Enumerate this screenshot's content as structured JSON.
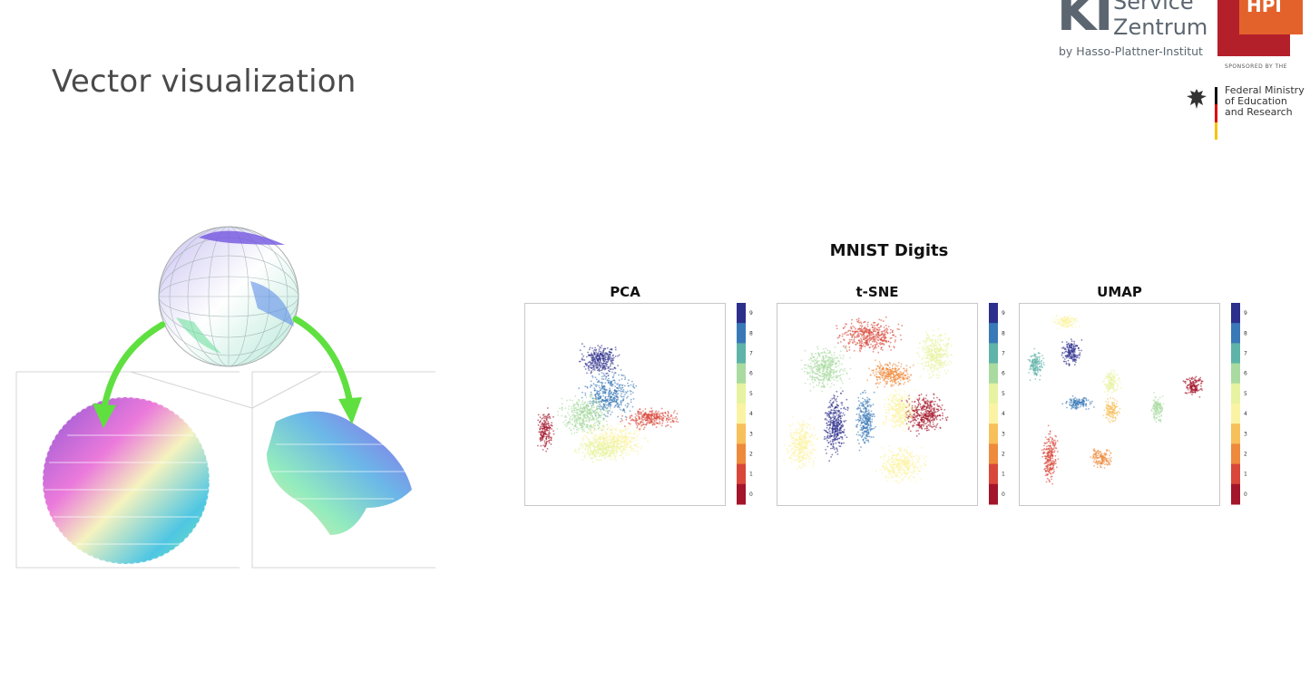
{
  "slide": {
    "title": "Vector visualization"
  },
  "logo": {
    "ki": "KI",
    "service": "Service",
    "zentrum": "Zentrum",
    "byline": "by Hasso-Plattner-Institut",
    "hpi": "HPI",
    "sponsored": "SPONSORED BY THE",
    "ministry_line1": "Federal Ministry",
    "ministry_line2": "of Education",
    "ministry_line3": "and Research"
  },
  "colors": {
    "title_text": "#4a4a4a",
    "hpi_red": "#b3202a",
    "hpi_orange": "#e3622b",
    "arrow_green": "#5fe040"
  },
  "icons": [
    "eagle-icon",
    "flag-stripe-icon",
    "sphere-icon",
    "arrow-icon"
  ],
  "chart_data": {
    "type": "scatter",
    "title": "MNIST Digits",
    "panels": [
      {
        "name": "PCA",
        "clusters": [
          {
            "label": 0,
            "cx": 0.1,
            "cy": 0.63,
            "rx": 0.05,
            "ry": 0.12
          },
          {
            "label": 9,
            "cx": 0.37,
            "cy": 0.28,
            "rx": 0.12,
            "ry": 0.1
          },
          {
            "label": 8,
            "cx": 0.42,
            "cy": 0.45,
            "rx": 0.16,
            "ry": 0.14
          },
          {
            "label": 1,
            "cx": 0.63,
            "cy": 0.57,
            "rx": 0.18,
            "ry": 0.06
          },
          {
            "label": 6,
            "cx": 0.3,
            "cy": 0.55,
            "rx": 0.15,
            "ry": 0.12
          },
          {
            "label": 4,
            "cx": 0.45,
            "cy": 0.68,
            "rx": 0.2,
            "ry": 0.1
          },
          {
            "label": 5,
            "cx": 0.38,
            "cy": 0.72,
            "rx": 0.16,
            "ry": 0.08
          }
        ]
      },
      {
        "name": "t-SNE",
        "clusters": [
          {
            "label": 1,
            "cx": 0.46,
            "cy": 0.16,
            "rx": 0.2,
            "ry": 0.1
          },
          {
            "label": 5,
            "cx": 0.79,
            "cy": 0.25,
            "rx": 0.1,
            "ry": 0.15
          },
          {
            "label": 6,
            "cx": 0.24,
            "cy": 0.32,
            "rx": 0.14,
            "ry": 0.13
          },
          {
            "label": 2,
            "cx": 0.57,
            "cy": 0.35,
            "rx": 0.14,
            "ry": 0.08
          },
          {
            "label": 9,
            "cx": 0.29,
            "cy": 0.6,
            "rx": 0.07,
            "ry": 0.2
          },
          {
            "label": 8,
            "cx": 0.44,
            "cy": 0.58,
            "rx": 0.06,
            "ry": 0.17
          },
          {
            "label": 0,
            "cx": 0.74,
            "cy": 0.55,
            "rx": 0.13,
            "ry": 0.12
          },
          {
            "label": 4,
            "cx": 0.12,
            "cy": 0.7,
            "rx": 0.09,
            "ry": 0.16
          },
          {
            "label": 4,
            "cx": 0.61,
            "cy": 0.53,
            "rx": 0.1,
            "ry": 0.13
          },
          {
            "label": 4,
            "cx": 0.62,
            "cy": 0.8,
            "rx": 0.14,
            "ry": 0.11
          }
        ]
      },
      {
        "name": "UMAP",
        "clusters": [
          {
            "label": 4,
            "cx": 0.23,
            "cy": 0.09,
            "rx": 0.08,
            "ry": 0.04
          },
          {
            "label": 9,
            "cx": 0.26,
            "cy": 0.24,
            "rx": 0.06,
            "ry": 0.09
          },
          {
            "label": 7,
            "cx": 0.08,
            "cy": 0.3,
            "rx": 0.05,
            "ry": 0.09
          },
          {
            "label": 0,
            "cx": 0.87,
            "cy": 0.41,
            "rx": 0.06,
            "ry": 0.07
          },
          {
            "label": 5,
            "cx": 0.46,
            "cy": 0.39,
            "rx": 0.05,
            "ry": 0.08
          },
          {
            "label": 8,
            "cx": 0.29,
            "cy": 0.49,
            "rx": 0.09,
            "ry": 0.04
          },
          {
            "label": 3,
            "cx": 0.46,
            "cy": 0.53,
            "rx": 0.05,
            "ry": 0.07
          },
          {
            "label": 6,
            "cx": 0.69,
            "cy": 0.52,
            "rx": 0.04,
            "ry": 0.09
          },
          {
            "label": 2,
            "cx": 0.41,
            "cy": 0.77,
            "rx": 0.07,
            "ry": 0.06
          },
          {
            "label": 1,
            "cx": 0.15,
            "cy": 0.76,
            "rx": 0.05,
            "ry": 0.17
          }
        ]
      }
    ],
    "colorbar": {
      "ticks": [
        "9",
        "8",
        "7",
        "6",
        "5",
        "4",
        "3",
        "2",
        "1",
        "0"
      ],
      "colors": [
        "#2d2f8c",
        "#3a79b8",
        "#5fb3a8",
        "#a9dba0",
        "#e7f3a0",
        "#fbf3a4",
        "#f7c05a",
        "#ee8a3c",
        "#d8473a",
        "#a3152a"
      ]
    }
  }
}
